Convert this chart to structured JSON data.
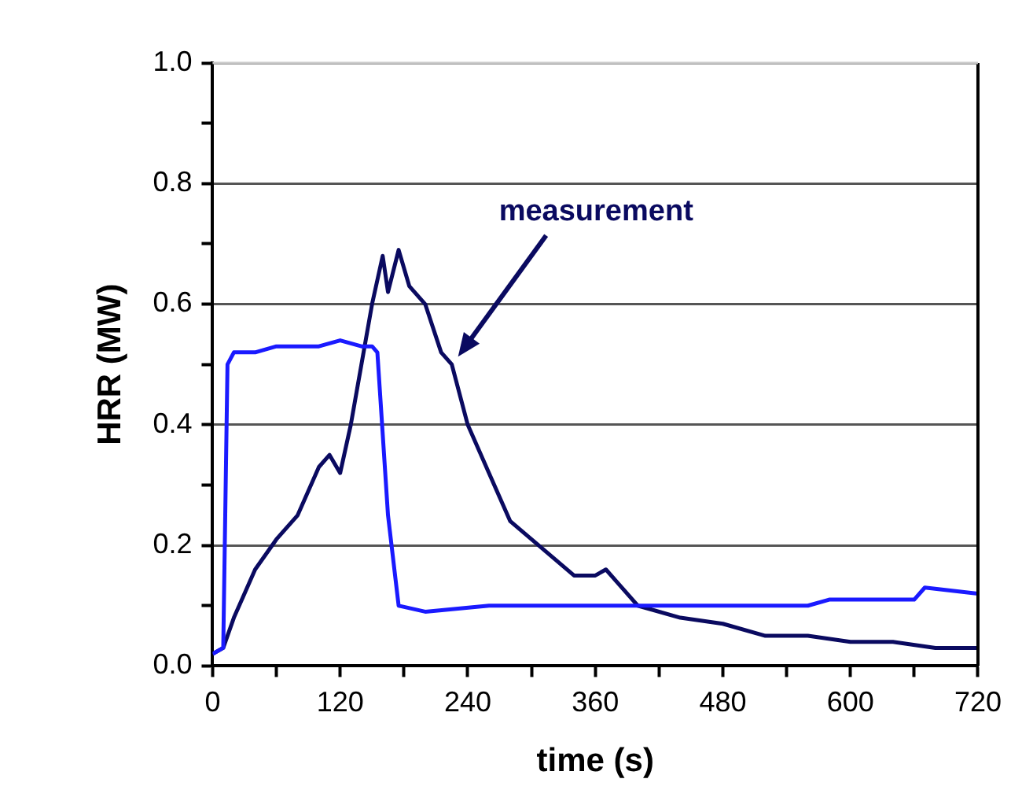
{
  "chart_data": {
    "type": "line",
    "xlabel": "time (s)",
    "ylabel": "HRR (MW)",
    "xlim": [
      0,
      720
    ],
    "ylim": [
      0,
      1.0
    ],
    "xticks": [
      0,
      {
        "value": 60,
        "label": null
      },
      120,
      {
        "value": 180,
        "label": null
      },
      240,
      {
        "value": 300,
        "label": null
      },
      360,
      {
        "value": 420,
        "label": null
      },
      480,
      {
        "value": 540,
        "label": null
      },
      600,
      {
        "value": 660,
        "label": null
      },
      720
    ],
    "yticks": [
      {
        "value": 0,
        "label": "0.0"
      },
      {
        "value": 0.1,
        "label": null
      },
      {
        "value": 0.2,
        "label": "0.2"
      },
      {
        "value": 0.3,
        "label": null
      },
      {
        "value": 0.4,
        "label": "0.4"
      },
      {
        "value": 0.5,
        "label": null
      },
      {
        "value": 0.6,
        "label": "0.6"
      },
      {
        "value": 0.7,
        "label": null
      },
      {
        "value": 0.8,
        "label": "0.8"
      },
      {
        "value": 0.9,
        "label": null
      },
      {
        "value": 1.0,
        "label": "1.0"
      }
    ],
    "grid": "y",
    "legend": false,
    "marker": "none",
    "line_style": "solid",
    "series": [
      {
        "color": "#1a1aff",
        "x": [
          0,
          10,
          14,
          20,
          40,
          60,
          80,
          100,
          120,
          140,
          150,
          155,
          165,
          175,
          200,
          260,
          360,
          480,
          560,
          580,
          660,
          670,
          720
        ],
        "values": [
          0.02,
          0.03,
          0.5,
          0.52,
          0.52,
          0.53,
          0.53,
          0.53,
          0.54,
          0.53,
          0.53,
          0.52,
          0.25,
          0.1,
          0.09,
          0.1,
          0.1,
          0.1,
          0.1,
          0.11,
          0.11,
          0.13,
          0.12
        ]
      },
      {
        "name": "measurement",
        "color": "#0a0a60",
        "x": [
          0,
          10,
          20,
          40,
          60,
          80,
          100,
          110,
          120,
          130,
          140,
          150,
          160,
          165,
          175,
          185,
          200,
          215,
          225,
          240,
          260,
          280,
          300,
          320,
          340,
          360,
          370,
          380,
          400,
          440,
          480,
          520,
          560,
          600,
          640,
          680,
          720
        ],
        "values": [
          0.02,
          0.03,
          0.08,
          0.16,
          0.21,
          0.25,
          0.33,
          0.35,
          0.32,
          0.4,
          0.5,
          0.6,
          0.68,
          0.62,
          0.69,
          0.63,
          0.6,
          0.52,
          0.5,
          0.4,
          0.32,
          0.24,
          0.21,
          0.18,
          0.15,
          0.15,
          0.16,
          0.14,
          0.1,
          0.08,
          0.07,
          0.05,
          0.05,
          0.04,
          0.04,
          0.03,
          0.03
        ]
      }
    ]
  }
}
